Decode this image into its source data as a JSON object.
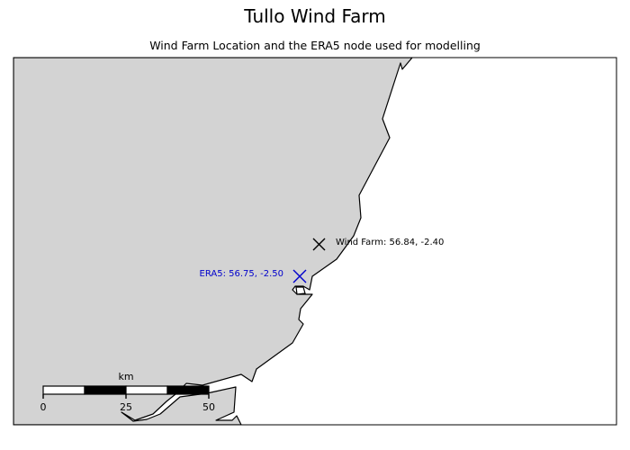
{
  "title": "Tullo Wind Farm",
  "subtitle": "Wind Farm Location and the ERA5 node used for modelling",
  "colors": {
    "land": "#d3d3d3",
    "sea": "#ffffff",
    "coast": "#000000",
    "wind_farm_marker": "#000000",
    "era5_marker": "#0000cc"
  },
  "markers": [
    {
      "id": "wind-farm",
      "label": "Wind Farm: 56.84, -2.40",
      "lat": 56.84,
      "lon": -2.4,
      "symbol": "x",
      "color": "#000000"
    },
    {
      "id": "era5",
      "label": "ERA5: 56.75, -2.50",
      "lat": 56.75,
      "lon": -2.5,
      "symbol": "x",
      "color": "#0000cc"
    }
  ],
  "scale_bar": {
    "unit": "km",
    "ticks": [
      "0",
      "25",
      "50"
    ]
  }
}
